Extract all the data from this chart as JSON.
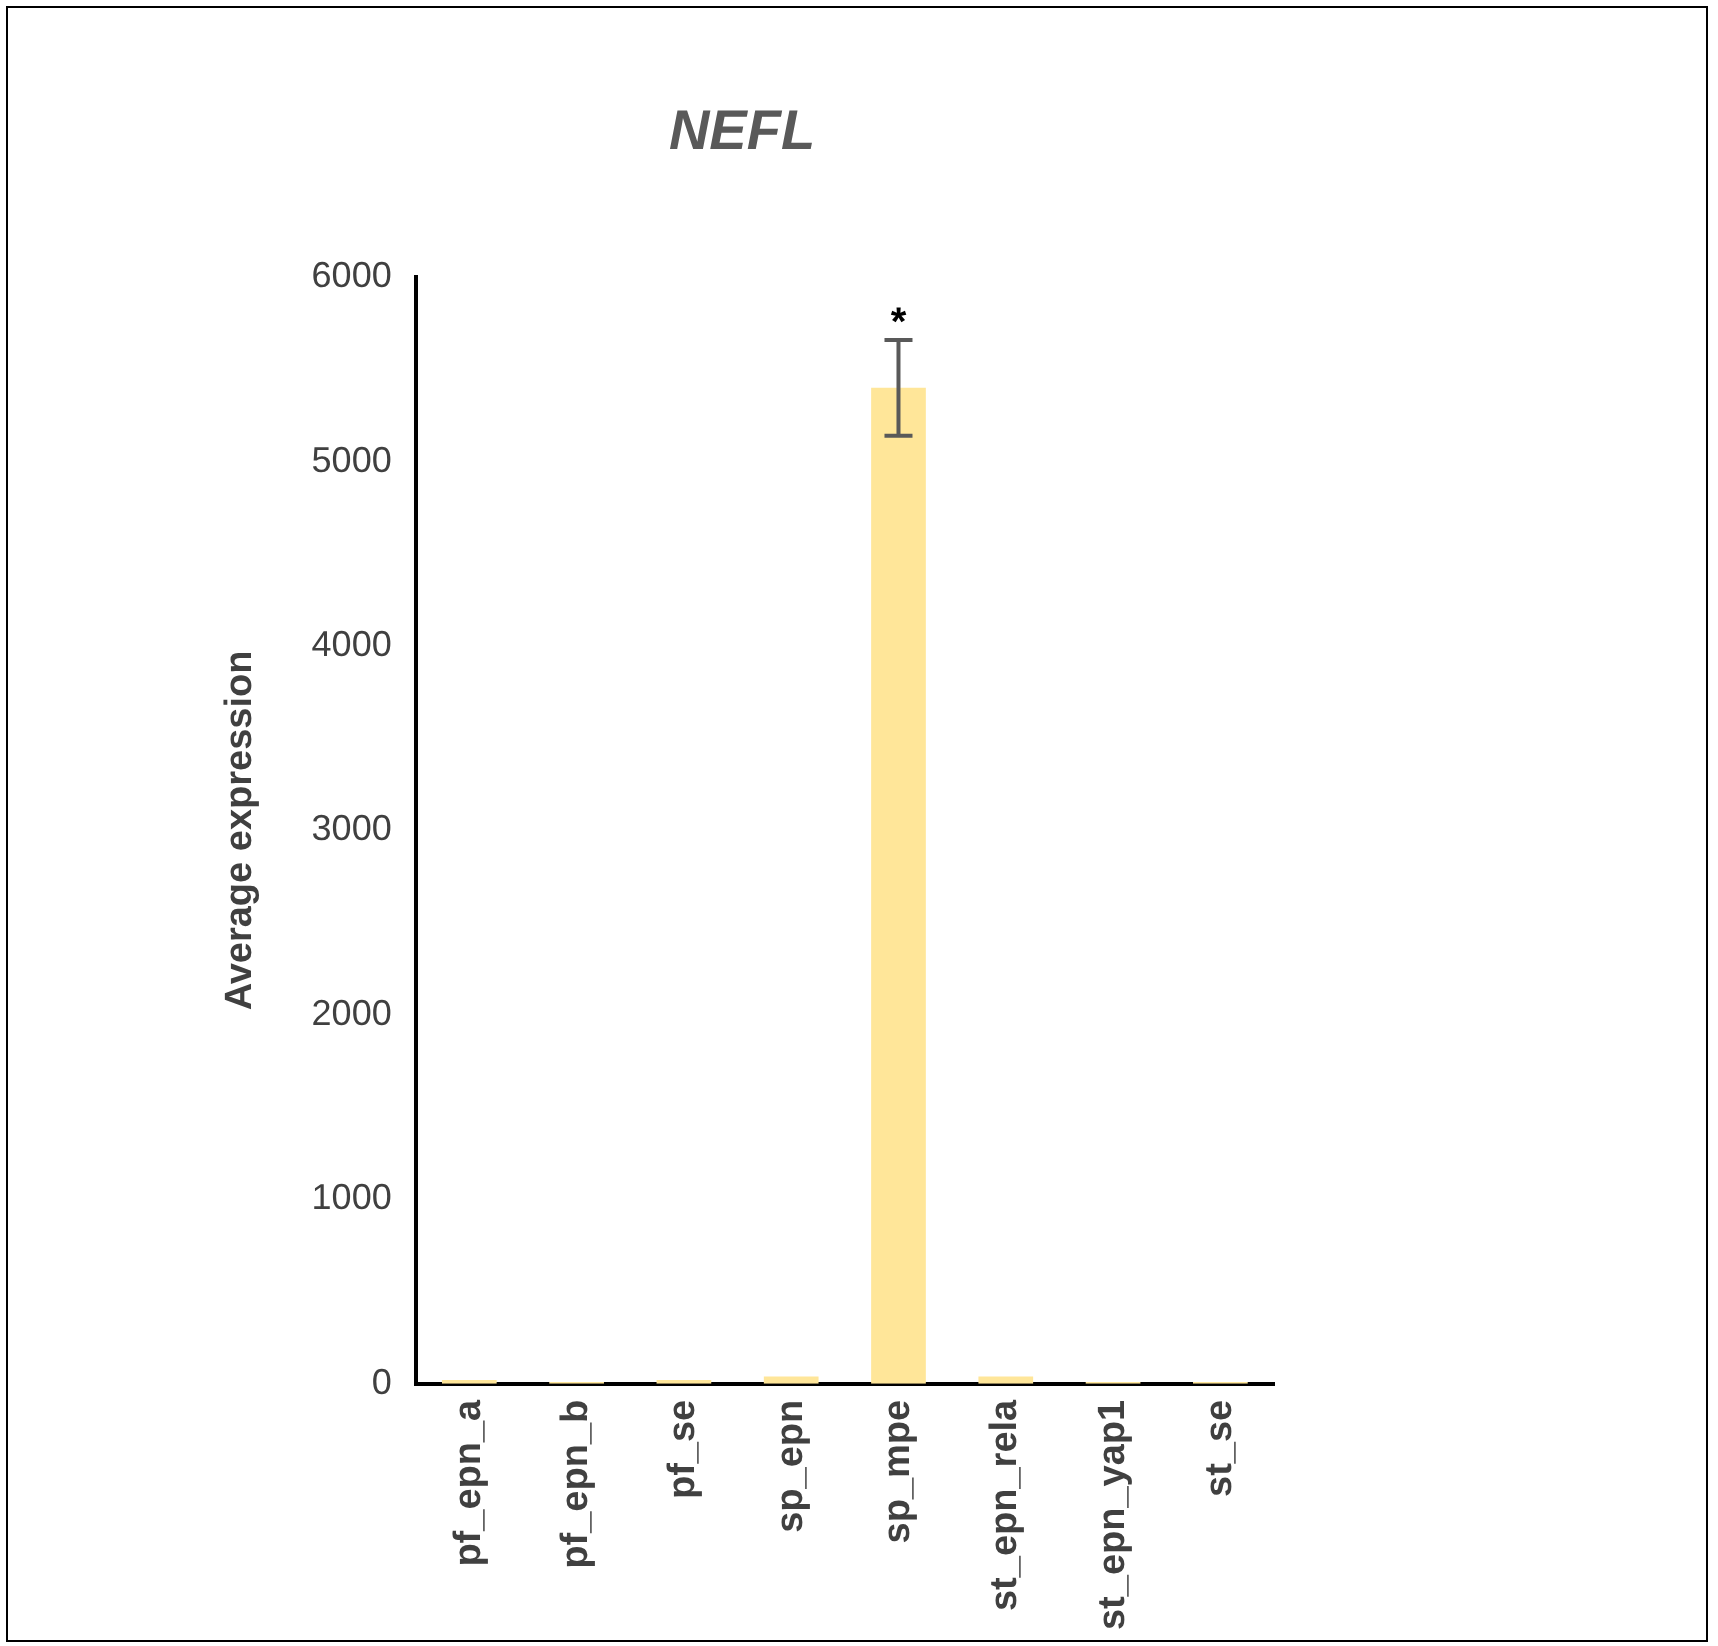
{
  "chart_data": {
    "type": "bar",
    "title": "NEFL",
    "ylabel": "Average expression",
    "categories": [
      "pf_epn_a",
      "pf_epn_b",
      "pf_se",
      "sp_epn",
      "sp_mpe",
      "st_epn_rela",
      "st_epn_yap1",
      "st_se"
    ],
    "values": [
      20,
      10,
      20,
      40,
      5400,
      40,
      10,
      10
    ],
    "errors": [
      null,
      null,
      null,
      null,
      260,
      null,
      null,
      null
    ],
    "color": "#ffe699",
    "ylim": [
      0,
      6000
    ],
    "yticks": [
      0,
      1000,
      2000,
      3000,
      4000,
      5000,
      6000
    ],
    "grid": false,
    "legend": false,
    "annotations": [
      {
        "text": "*",
        "x": "sp_mpe",
        "y": 5660
      }
    ]
  }
}
